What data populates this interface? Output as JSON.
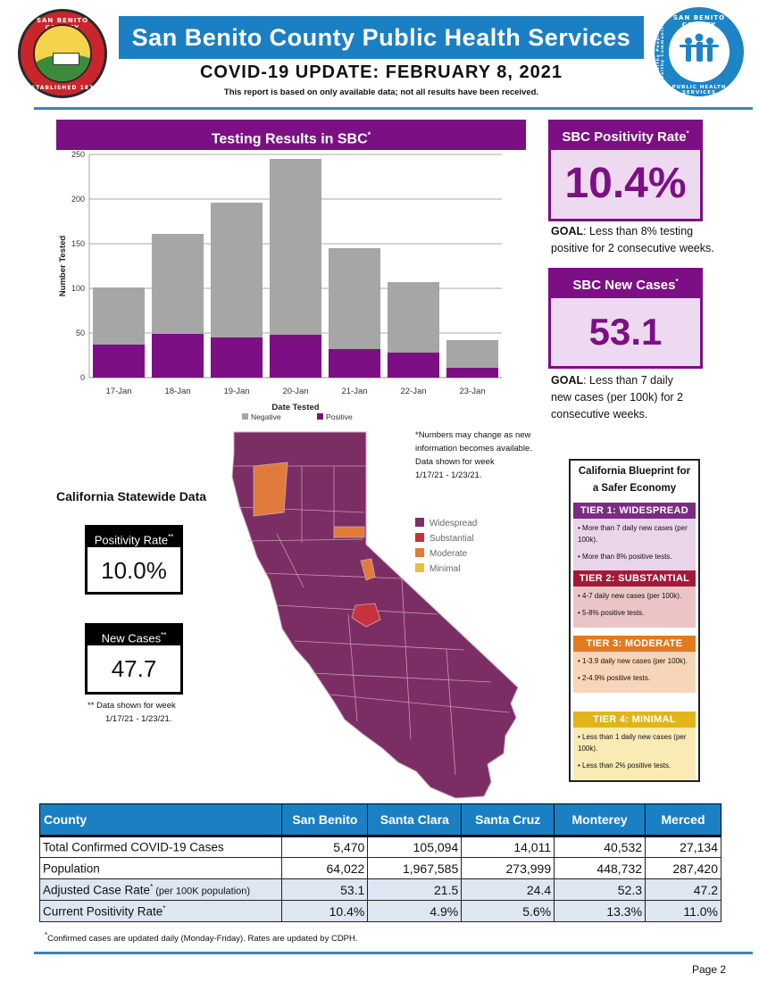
{
  "header": {
    "seal_left_top": "SAN BENITO COUNTY",
    "seal_left_bottom": "ESTABLISHED 1874",
    "seal_right_top": "SAN BENITO COUNTY",
    "seal_right_bottom": "PUBLIC HEALTH SERVICES",
    "seal_right_motto": "Healthy People in Healthy Communities",
    "org_title": "San Benito County Public Health Services",
    "update_title": "COVID-19 UPDATE: FEBRUARY 8, 2021",
    "report_note": "This report is based on only available data; not all results have been received."
  },
  "chart_data": {
    "type": "bar",
    "title": "Testing Results in SBC",
    "title_mark": "*",
    "xlabel": "Date Tested",
    "ylabel": "Number Tested",
    "ylim": [
      0,
      250
    ],
    "yticks": [
      "0",
      "50",
      "100",
      "150",
      "200",
      "250"
    ],
    "grid": true,
    "stacked": true,
    "legend_position": "bottom",
    "categories": [
      "17-Jan",
      "18-Jan",
      "19-Jan",
      "20-Jan",
      "21-Jan",
      "22-Jan",
      "23-Jan"
    ],
    "series": [
      {
        "name": "Negative",
        "color": "#a6a6a6",
        "values": [
          64,
          112,
          151,
          197,
          113,
          79,
          31
        ]
      },
      {
        "name": "Positive",
        "color": "#7c0f84",
        "values": [
          37,
          49,
          45,
          48,
          32,
          28,
          11
        ]
      }
    ]
  },
  "positivity": {
    "title": "SBC Positivity Rate",
    "mark": "*",
    "value": "10.4%",
    "goal_label": "GOAL",
    "goal_line1": ": Less than 8% testing",
    "goal_line2": "positive for 2 consecutive weeks."
  },
  "new_cases": {
    "title": "SBC New Cases",
    "mark": "*",
    "value": "53.1",
    "goal_label": "GOAL",
    "goal_line1": ": Less than 7 daily",
    "goal_line2": "new cases (per 100k) for 2",
    "goal_line3": "consecutive weeks."
  },
  "statewide": {
    "title": "California Statewide Data",
    "positivity_label": "Positivity Rate",
    "positivity_mark": "**",
    "positivity_value": "10.0%",
    "cases_label": "New Cases",
    "cases_mark": "**",
    "cases_value": "47.7",
    "note_line1": "** Data shown for week",
    "note_line2": "1/17/21 - 1/23/21."
  },
  "map_note": {
    "line1": "*Numbers may change as new",
    "line2": "information becomes available.",
    "line3": "Data shown for week",
    "line4": "1/17/21 - 1/23/21."
  },
  "map_legend": [
    {
      "label": "Widespread",
      "color": "#7b2e63"
    },
    {
      "label": "Substantial",
      "color": "#c8323c"
    },
    {
      "label": "Moderate",
      "color": "#e07b3c"
    },
    {
      "label": "Minimal",
      "color": "#e6bf3c"
    }
  ],
  "blueprint": {
    "title_line1": "California Blueprint for",
    "title_line2": "a Safer Economy",
    "tiers": [
      {
        "head": "TIER 1: WIDESPREAD",
        "head_color": "#7c2b83",
        "body_color": "#e9d4ea",
        "b1": "• More than 7 daily new cases (per 100k).",
        "b2": "• More than 8% positive tests."
      },
      {
        "head": "TIER 2: SUBSTANTIAL",
        "head_color": "#a4193a",
        "body_color": "#ebc5c6",
        "b1": "• 4-7 daily new cases (per 100k).",
        "b2": "• 5-8% positive tests."
      },
      {
        "head": "TIER 3: MODERATE",
        "head_color": "#e07b1f",
        "body_color": "#f7d5b8",
        "b1": "• 1-3.9 daily new cases (per 100k).",
        "b2": "• 2-4.9% positive tests."
      },
      {
        "head": "TIER 4: MINIMAL",
        "head_color": "#e1b51a",
        "body_color": "#faeab3",
        "b1": "• Less than 1 daily new cases (per 100k).",
        "b2": "• Less than 2% positive tests."
      }
    ]
  },
  "table": {
    "headers": [
      "County",
      "San Benito",
      "Santa Clara",
      "Santa Cruz",
      "Monterey",
      "Merced"
    ],
    "rows": [
      {
        "label": "Total Confirmed COVID-19 Cases",
        "label_mark": "",
        "label_suffix": "",
        "values": [
          "5,470",
          "105,094",
          "14,011",
          "40,532",
          "27,134"
        ]
      },
      {
        "label": "Population",
        "label_mark": "",
        "label_suffix": "",
        "values": [
          "64,022",
          "1,967,585",
          "273,999",
          "448,732",
          "287,420"
        ]
      },
      {
        "label": "Adjusted Case Rate",
        "label_mark": "*",
        "label_suffix": " (per 100K population)",
        "values": [
          "53.1",
          "21.5",
          "24.4",
          "52.3",
          "47.2"
        ]
      },
      {
        "label": "Current Positivity Rate",
        "label_mark": "*",
        "label_suffix": "",
        "values": [
          "10.4%",
          "4.9%",
          "5.6%",
          "13.3%",
          "11.0%"
        ]
      }
    ]
  },
  "footnote_mark": "*",
  "footnote": "Confirmed cases are updated daily (Monday-Friday). Rates are updated by CDPH.",
  "page_number": "Page 2"
}
